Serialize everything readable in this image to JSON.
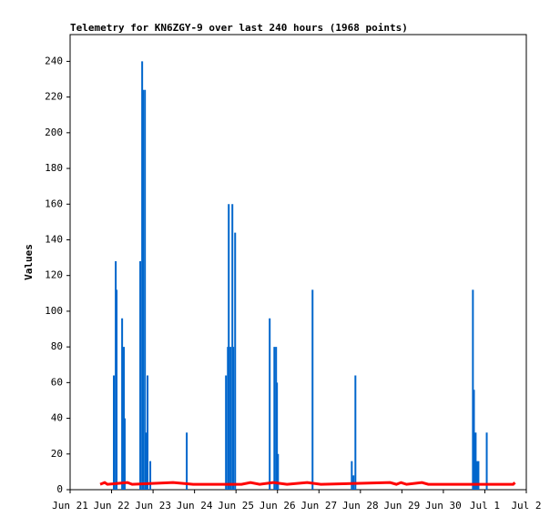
{
  "chart_data": {
    "type": "line",
    "title": "Telemetry for KN6ZGY-9 over last 240 hours (1968 points)",
    "y_label": "Values",
    "xlim": [
      0,
      264
    ],
    "xticks": [
      {
        "value": 0,
        "label": "Jun 21"
      },
      {
        "value": 24,
        "label": "Jun 22"
      },
      {
        "value": 48,
        "label": "Jun 23"
      },
      {
        "value": 72,
        "label": "Jun 24"
      },
      {
        "value": 96,
        "label": "Jun 25"
      },
      {
        "value": 120,
        "label": "Jun 26"
      },
      {
        "value": 144,
        "label": "Jun 27"
      },
      {
        "value": 168,
        "label": "Jun 28"
      },
      {
        "value": 192,
        "label": "Jun 29"
      },
      {
        "value": 216,
        "label": "Jun 30"
      },
      {
        "value": 240,
        "label": "Jul 1"
      },
      {
        "value": 264,
        "label": "Jul 2"
      }
    ],
    "ylim": [
      0,
      255
    ],
    "yticks": [
      0,
      20,
      40,
      60,
      80,
      100,
      120,
      140,
      160,
      180,
      200,
      220,
      240
    ],
    "grid": false,
    "series": [
      {
        "type": "impulse",
        "color": "#0066cc",
        "x": [
          25.3,
          26.4,
          26.9,
          30.1,
          31.1,
          31.6,
          40.6,
          41.7,
          42.2,
          43.3,
          43.8,
          44.8,
          46.4,
          67.5,
          90.2,
          91.3,
          91.8,
          92.8,
          93.9,
          94.4,
          95.5,
          115.5,
          118.2,
          119.2,
          119.7,
          120.3,
          140.3,
          163.0,
          164.0,
          165.1,
          233.1,
          233.7,
          234.7,
          235.3,
          236.3,
          241.1
        ],
        "values": [
          64,
          128,
          112,
          96,
          80,
          40,
          128,
          240,
          224,
          224,
          32,
          64,
          16,
          32,
          64,
          80,
          160,
          80,
          160,
          80,
          144,
          96,
          80,
          80,
          60,
          20,
          112,
          16,
          8,
          64,
          112,
          56,
          32,
          16,
          16,
          32
        ]
      },
      {
        "type": "line",
        "color": "#ff0000",
        "x": [
          17.4,
          20.0,
          21.6,
          33.2,
          35.9,
          59.6,
          71.2,
          99.2,
          104.4,
          109.7,
          117.6,
          125.5,
          137.2,
          145.1,
          185.2,
          188.8,
          191.5,
          194.7,
          203.6,
          207.3,
          256.4,
          257.4
        ],
        "values": [
          3,
          4,
          3,
          4,
          3,
          4,
          3,
          3,
          4,
          3,
          4,
          3,
          4,
          3,
          4,
          3,
          4,
          3,
          4,
          3,
          3,
          4
        ]
      }
    ]
  }
}
